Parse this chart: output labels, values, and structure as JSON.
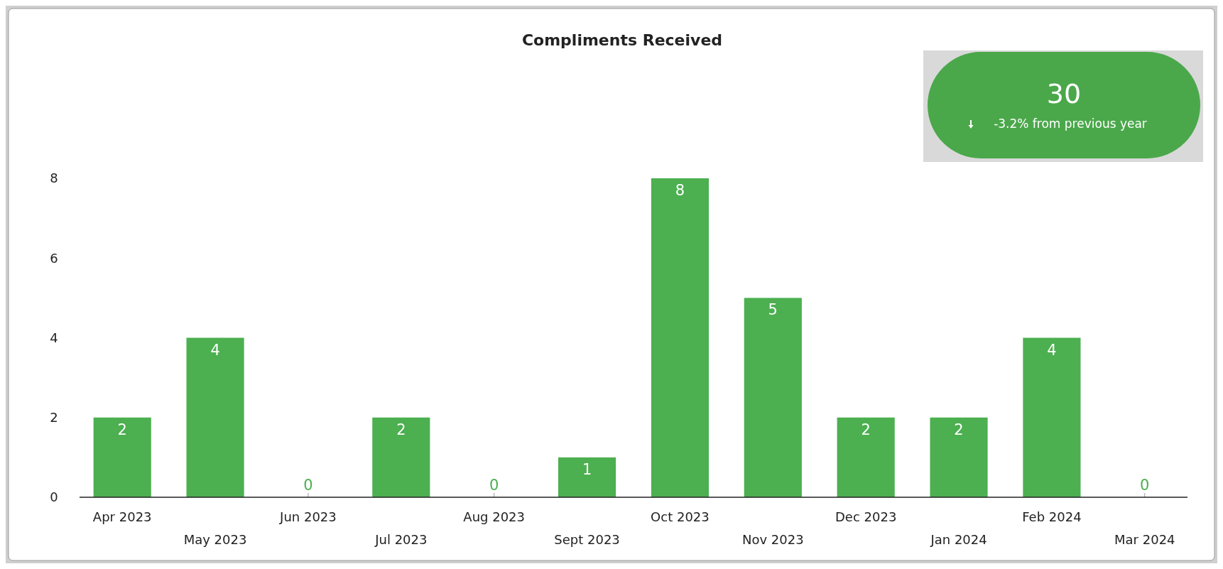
{
  "chart_data": {
    "type": "bar",
    "title": "Compliments Received",
    "categories": [
      "Apr 2023",
      "May 2023",
      "Jun 2023",
      "Jul 2023",
      "Aug 2023",
      "Sept 2023",
      "Oct 2023",
      "Nov 2023",
      "Dec 2023",
      "Jan 2024",
      "Feb 2024",
      "Mar 2024"
    ],
    "values": [
      2,
      4,
      0,
      2,
      0,
      1,
      8,
      5,
      2,
      2,
      4,
      0
    ],
    "color": "#4caf50",
    "ylim": [
      0,
      8
    ],
    "yticks": [
      0,
      2,
      4,
      6,
      8
    ],
    "grid": false,
    "data_labels": true,
    "annotations": [
      "30",
      "-3.2% from previous year"
    ]
  }
}
